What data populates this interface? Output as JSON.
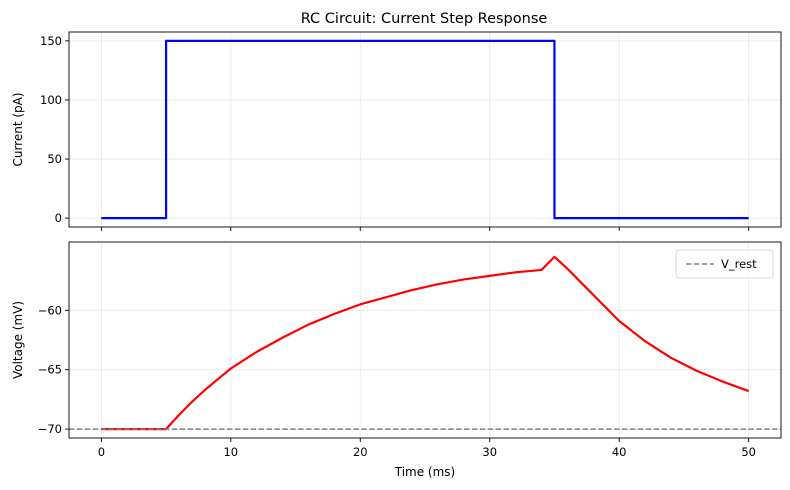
{
  "chart_data": [
    {
      "type": "line",
      "title": "RC Circuit: Current Step Response",
      "xlabel": "",
      "ylabel": "Current (pA)",
      "xlim": [
        -2.5,
        52.5
      ],
      "ylim": [
        -7.5,
        157.5
      ],
      "xticks": [
        0,
        10,
        20,
        30,
        40,
        50
      ],
      "yticks": [
        0,
        50,
        100,
        150
      ],
      "show_xticklabels": false,
      "grid": true,
      "series": [
        {
          "color": "#0000ff",
          "x": [
            0,
            5,
            5,
            35,
            35,
            50
          ],
          "y": [
            0,
            0,
            150,
            150,
            0,
            0
          ]
        }
      ]
    },
    {
      "type": "line",
      "title": "",
      "xlabel": "Time (ms)",
      "ylabel": "Voltage (mV)",
      "xlim": [
        -2.5,
        52.5
      ],
      "ylim": [
        -70.75,
        -54.25
      ],
      "xticks": [
        0,
        10,
        20,
        30,
        40,
        50
      ],
      "yticks": [
        -70,
        -65,
        -60
      ],
      "ytick_labels": [
        "−70",
        "−65",
        "−60"
      ],
      "show_xticklabels": true,
      "grid": true,
      "legend": {
        "position": "top-right",
        "entries": [
          "V_rest"
        ]
      },
      "series": [
        {
          "color": "#ff0000",
          "x": [
            0,
            5,
            6,
            7,
            8,
            9,
            10,
            12,
            14,
            16,
            18,
            20,
            22,
            24,
            26,
            28,
            30,
            32,
            34,
            35,
            36,
            37,
            38,
            40,
            42,
            44,
            46,
            48,
            50
          ],
          "y": [
            -70,
            -70,
            -68.8,
            -67.7,
            -66.7,
            -65.8,
            -64.9,
            -63.5,
            -62.3,
            -61.2,
            -60.3,
            -59.5,
            -58.9,
            -58.3,
            -57.8,
            -57.4,
            -57.1,
            -56.8,
            -56.6,
            -55.5,
            -56.5,
            -57.6,
            -58.7,
            -60.9,
            -62.6,
            -64.0,
            -65.1,
            -66.0,
            -66.8
          ]
        },
        {
          "name": "V_rest",
          "color": "#808080",
          "dashed": true,
          "x": [
            -2.5,
            52.5
          ],
          "y": [
            -70,
            -70
          ]
        }
      ]
    }
  ]
}
